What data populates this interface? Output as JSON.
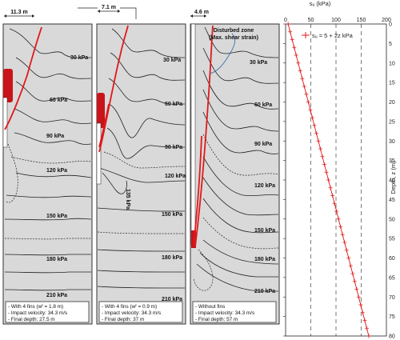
{
  "panels": [
    {
      "width_label": "11.3 m",
      "contour_labels": [
        "30 kPa",
        "60 kPa",
        "90 kPa",
        "120 kPa",
        "150 kPa",
        "180 kPa",
        "210 kPa"
      ],
      "notes": [
        "- With 4 fins (wᶠ = 1.8 m)",
        "- Impact velocity: 34.3 m/s",
        "- Final depth: 27.5 m"
      ]
    },
    {
      "width_label": "7.1 m",
      "contour_labels": [
        "30 kPa",
        "60 kPa",
        "90 kPa",
        "120 kPa",
        "135 kPa",
        "150 kPa",
        "180 kPa",
        "210 kPa"
      ],
      "notes": [
        "- With 4 fins (wᶠ = 0.9 m)",
        "- Impact velocity: 34.3 m/s",
        "- Final depth: 37 m"
      ]
    },
    {
      "width_label": "4.6 m",
      "disturbed_label": [
        "Disturbed zone",
        "(Max. shear strain)"
      ],
      "contour_labels": [
        "30 kPa",
        "60 kPa",
        "90 kPa",
        "120 kPa",
        "150 kPa",
        "180 kPa",
        "210 kPa"
      ],
      "notes": [
        "- Without fins",
        "- Impact velocity: 34.3 m/s",
        "- Final depth: 57 m"
      ]
    }
  ],
  "chart_data": {
    "type": "line",
    "title": "",
    "xlabel": "sᵤ (kPa)",
    "ylabel": "Depth, z (m)",
    "xlim": [
      0,
      200
    ],
    "ylim": [
      80,
      0
    ],
    "x_ticks": [
      "0",
      "50",
      "100",
      "150",
      "200"
    ],
    "y_ticks": [
      "0",
      "5",
      "10",
      "15",
      "20",
      "25",
      "30",
      "35",
      "40",
      "45",
      "50",
      "55",
      "60",
      "65",
      "70",
      "75",
      "80"
    ],
    "grid": true,
    "legend_position": "top-right",
    "series": [
      {
        "name": "sᵤ = 5 + 2z kPa",
        "color": "#e0191b",
        "marker": "+",
        "z": [
          0,
          2,
          4,
          6,
          8,
          10,
          12,
          14,
          16,
          18,
          20,
          22,
          24,
          26,
          28,
          30,
          32,
          34,
          36,
          38,
          40,
          42,
          44,
          46,
          48,
          50,
          52,
          54,
          56,
          58,
          60,
          62,
          64,
          66,
          68,
          70,
          72,
          74,
          76,
          78,
          80
        ],
        "su": [
          5,
          9,
          13,
          17,
          21,
          25,
          29,
          33,
          37,
          41,
          45,
          49,
          53,
          57,
          61,
          65,
          69,
          73,
          77,
          81,
          85,
          89,
          93,
          97,
          101,
          105,
          109,
          113,
          117,
          121,
          125,
          129,
          133,
          137,
          141,
          145,
          149,
          153,
          157,
          161,
          165
        ]
      }
    ]
  }
}
